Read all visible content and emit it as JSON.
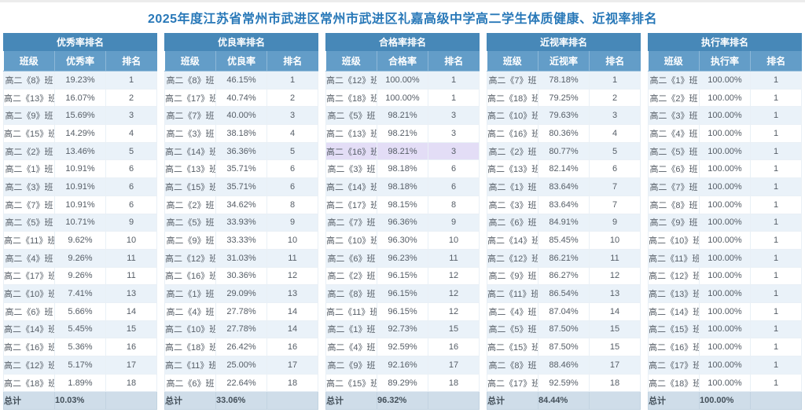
{
  "page": {
    "title": "2025年度江苏省常州市武进区常州市武进区礼嘉高级中学高二学生体质健康、近视率排名"
  },
  "colors": {
    "title_text": "#2878b8",
    "table_title_bar": "#4788b8",
    "column_header": "#639dc8",
    "row_alt": "#eaf2f9",
    "row_plain": "#ffffff",
    "total_row": "#cfdde9",
    "highlight_row": "#e3ddf6",
    "cell_text": "#555d66"
  },
  "tables": [
    {
      "title": "优秀率排名",
      "columns": [
        "班级",
        "优秀率",
        "排名"
      ],
      "rows": [
        {
          "class": "高二《8》班",
          "rate": "19.23%",
          "rank": "1"
        },
        {
          "class": "高二《13》班",
          "rate": "16.07%",
          "rank": "2"
        },
        {
          "class": "高二《9》班",
          "rate": "15.69%",
          "rank": "3"
        },
        {
          "class": "高二《15》班",
          "rate": "14.29%",
          "rank": "4"
        },
        {
          "class": "高二《2》班",
          "rate": "13.46%",
          "rank": "5"
        },
        {
          "class": "高二《1》班",
          "rate": "10.91%",
          "rank": "6"
        },
        {
          "class": "高二《3》班",
          "rate": "10.91%",
          "rank": "6"
        },
        {
          "class": "高二《7》班",
          "rate": "10.91%",
          "rank": "6"
        },
        {
          "class": "高二《5》班",
          "rate": "10.71%",
          "rank": "9"
        },
        {
          "class": "高二《11》班",
          "rate": "9.62%",
          "rank": "10"
        },
        {
          "class": "高二《4》班",
          "rate": "9.26%",
          "rank": "11"
        },
        {
          "class": "高二《17》班",
          "rate": "9.26%",
          "rank": "11"
        },
        {
          "class": "高二《10》班",
          "rate": "7.41%",
          "rank": "13"
        },
        {
          "class": "高二《6》班",
          "rate": "5.66%",
          "rank": "14"
        },
        {
          "class": "高二《14》班",
          "rate": "5.45%",
          "rank": "15"
        },
        {
          "class": "高二《16》班",
          "rate": "5.36%",
          "rank": "16"
        },
        {
          "class": "高二《12》班",
          "rate": "5.17%",
          "rank": "17"
        },
        {
          "class": "高二《18》班",
          "rate": "1.89%",
          "rank": "18"
        }
      ],
      "total_label": "总计",
      "total_rate": "10.03%"
    },
    {
      "title": "优良率排名",
      "columns": [
        "班级",
        "优良率",
        "排名"
      ],
      "rows": [
        {
          "class": "高二《8》班",
          "rate": "46.15%",
          "rank": "1"
        },
        {
          "class": "高二《17》班",
          "rate": "40.74%",
          "rank": "2"
        },
        {
          "class": "高二《7》班",
          "rate": "40.00%",
          "rank": "3"
        },
        {
          "class": "高二《3》班",
          "rate": "38.18%",
          "rank": "4"
        },
        {
          "class": "高二《14》班",
          "rate": "36.36%",
          "rank": "5"
        },
        {
          "class": "高二《13》班",
          "rate": "35.71%",
          "rank": "6"
        },
        {
          "class": "高二《15》班",
          "rate": "35.71%",
          "rank": "6"
        },
        {
          "class": "高二《2》班",
          "rate": "34.62%",
          "rank": "8"
        },
        {
          "class": "高二《5》班",
          "rate": "33.93%",
          "rank": "9"
        },
        {
          "class": "高二《9》班",
          "rate": "33.33%",
          "rank": "10"
        },
        {
          "class": "高二《12》班",
          "rate": "31.03%",
          "rank": "11"
        },
        {
          "class": "高二《16》班",
          "rate": "30.36%",
          "rank": "12"
        },
        {
          "class": "高二《1》班",
          "rate": "29.09%",
          "rank": "13"
        },
        {
          "class": "高二《4》班",
          "rate": "27.78%",
          "rank": "14"
        },
        {
          "class": "高二《10》班",
          "rate": "27.78%",
          "rank": "14"
        },
        {
          "class": "高二《18》班",
          "rate": "26.42%",
          "rank": "16"
        },
        {
          "class": "高二《11》班",
          "rate": "25.00%",
          "rank": "17"
        },
        {
          "class": "高二《6》班",
          "rate": "22.64%",
          "rank": "18"
        }
      ],
      "total_label": "总计",
      "total_rate": "33.06%"
    },
    {
      "title": "合格率排名",
      "columns": [
        "班级",
        "合格率",
        "排名"
      ],
      "rows": [
        {
          "class": "高二《12》班",
          "rate": "100.00%",
          "rank": "1"
        },
        {
          "class": "高二《18》班",
          "rate": "100.00%",
          "rank": "1"
        },
        {
          "class": "高二《5》班",
          "rate": "98.21%",
          "rank": "3"
        },
        {
          "class": "高二《13》班",
          "rate": "98.21%",
          "rank": "3"
        },
        {
          "class": "高二《16》班",
          "rate": "98.21%",
          "rank": "3",
          "highlighted": true
        },
        {
          "class": "高二《3》班",
          "rate": "98.18%",
          "rank": "6"
        },
        {
          "class": "高二《14》班",
          "rate": "98.18%",
          "rank": "6"
        },
        {
          "class": "高二《17》班",
          "rate": "98.15%",
          "rank": "8"
        },
        {
          "class": "高二《7》班",
          "rate": "96.36%",
          "rank": "9"
        },
        {
          "class": "高二《10》班",
          "rate": "96.30%",
          "rank": "10"
        },
        {
          "class": "高二《6》班",
          "rate": "96.23%",
          "rank": "11"
        },
        {
          "class": "高二《2》班",
          "rate": "96.15%",
          "rank": "12"
        },
        {
          "class": "高二《8》班",
          "rate": "96.15%",
          "rank": "12"
        },
        {
          "class": "高二《11》班",
          "rate": "96.15%",
          "rank": "12"
        },
        {
          "class": "高二《1》班",
          "rate": "92.73%",
          "rank": "15"
        },
        {
          "class": "高二《4》班",
          "rate": "92.59%",
          "rank": "16"
        },
        {
          "class": "高二《9》班",
          "rate": "92.16%",
          "rank": "17"
        },
        {
          "class": "高二《15》班",
          "rate": "89.29%",
          "rank": "18"
        }
      ],
      "total_label": "总计",
      "total_rate": "96.32%"
    },
    {
      "title": "近视率排名",
      "columns": [
        "班级",
        "近视率",
        "排名"
      ],
      "rows": [
        {
          "class": "高二《7》班",
          "rate": "78.18%",
          "rank": "1"
        },
        {
          "class": "高二《18》班",
          "rate": "79.25%",
          "rank": "2"
        },
        {
          "class": "高二《10》班",
          "rate": "79.63%",
          "rank": "3"
        },
        {
          "class": "高二《16》班",
          "rate": "80.36%",
          "rank": "4"
        },
        {
          "class": "高二《2》班",
          "rate": "80.77%",
          "rank": "5"
        },
        {
          "class": "高二《13》班",
          "rate": "82.14%",
          "rank": "6"
        },
        {
          "class": "高二《1》班",
          "rate": "83.64%",
          "rank": "7"
        },
        {
          "class": "高二《3》班",
          "rate": "83.64%",
          "rank": "7"
        },
        {
          "class": "高二《6》班",
          "rate": "84.91%",
          "rank": "9"
        },
        {
          "class": "高二《14》班",
          "rate": "85.45%",
          "rank": "10"
        },
        {
          "class": "高二《12》班",
          "rate": "86.21%",
          "rank": "11"
        },
        {
          "class": "高二《9》班",
          "rate": "86.27%",
          "rank": "12"
        },
        {
          "class": "高二《11》班",
          "rate": "86.54%",
          "rank": "13"
        },
        {
          "class": "高二《4》班",
          "rate": "87.04%",
          "rank": "14"
        },
        {
          "class": "高二《5》班",
          "rate": "87.50%",
          "rank": "15"
        },
        {
          "class": "高二《15》班",
          "rate": "87.50%",
          "rank": "15"
        },
        {
          "class": "高二《8》班",
          "rate": "88.46%",
          "rank": "17"
        },
        {
          "class": "高二《17》班",
          "rate": "92.59%",
          "rank": "18"
        }
      ],
      "total_label": "总计",
      "total_rate": "84.44%"
    },
    {
      "title": "执行率排名",
      "columns": [
        "班级",
        "执行率",
        "排名"
      ],
      "rows": [
        {
          "class": "高二《1》班",
          "rate": "100.00%",
          "rank": "1"
        },
        {
          "class": "高二《2》班",
          "rate": "100.00%",
          "rank": "1"
        },
        {
          "class": "高二《3》班",
          "rate": "100.00%",
          "rank": "1"
        },
        {
          "class": "高二《4》班",
          "rate": "100.00%",
          "rank": "1"
        },
        {
          "class": "高二《5》班",
          "rate": "100.00%",
          "rank": "1"
        },
        {
          "class": "高二《6》班",
          "rate": "100.00%",
          "rank": "1"
        },
        {
          "class": "高二《7》班",
          "rate": "100.00%",
          "rank": "1"
        },
        {
          "class": "高二《8》班",
          "rate": "100.00%",
          "rank": "1"
        },
        {
          "class": "高二《9》班",
          "rate": "100.00%",
          "rank": "1"
        },
        {
          "class": "高二《10》班",
          "rate": "100.00%",
          "rank": "1"
        },
        {
          "class": "高二《11》班",
          "rate": "100.00%",
          "rank": "1"
        },
        {
          "class": "高二《12》班",
          "rate": "100.00%",
          "rank": "1"
        },
        {
          "class": "高二《13》班",
          "rate": "100.00%",
          "rank": "1"
        },
        {
          "class": "高二《14》班",
          "rate": "100.00%",
          "rank": "1"
        },
        {
          "class": "高二《15》班",
          "rate": "100.00%",
          "rank": "1"
        },
        {
          "class": "高二《16》班",
          "rate": "100.00%",
          "rank": "1"
        },
        {
          "class": "高二《17》班",
          "rate": "100.00%",
          "rank": "1"
        },
        {
          "class": "高二《18》班",
          "rate": "100.00%",
          "rank": "1"
        }
      ],
      "total_label": "总计",
      "total_rate": "100.00%"
    }
  ]
}
